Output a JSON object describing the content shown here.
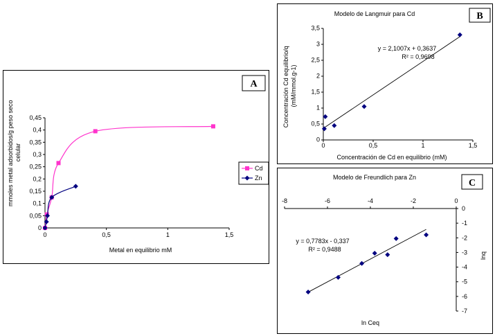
{
  "chart_data": [
    {
      "panel": "A",
      "type": "line",
      "title": "",
      "xlabel": "Metal en equilibrio mM",
      "ylabel": "mmoles metal adsorbidos/g peso seco celular",
      "xlim": [
        0,
        1.5
      ],
      "ylim": [
        0,
        0.45
      ],
      "xticks": [
        "0",
        "0,5",
        "1",
        "1,5"
      ],
      "yticks": [
        "0",
        "0,05",
        "0,1",
        "0,15",
        "0,2",
        "0,25",
        "0,3",
        "0,35",
        "0,4",
        "0,45"
      ],
      "legend": "right",
      "series": [
        {
          "name": "Cd",
          "color": "#ff33cc",
          "marker": "square",
          "x": [
            0,
            0.015,
            0.055,
            0.11,
            0.41,
            1.37
          ],
          "y": [
            0,
            0.055,
            0.125,
            0.265,
            0.395,
            0.415
          ]
        },
        {
          "name": "Zn",
          "color": "#000080",
          "marker": "diamond",
          "x": [
            0,
            0.012,
            0.02,
            0.055,
            0.25
          ],
          "y": [
            0,
            0.025,
            0.05,
            0.125,
            0.17
          ]
        }
      ]
    },
    {
      "panel": "B",
      "type": "scatter",
      "title": "Modelo de Langmuir para Cd",
      "xlabel": "Concentración de Cd en equilibrio (mM)",
      "ylabel": "Concentración Cd equilibrio/q (mM/mmol.g-1)",
      "xlim": [
        0,
        1.5
      ],
      "ylim": [
        0,
        3.5
      ],
      "xticks": [
        "0",
        "0,5",
        "1",
        "1,5"
      ],
      "yticks": [
        "0",
        "0,5",
        "1",
        "1,5",
        "2",
        "2,5",
        "3",
        "3,5"
      ],
      "equation": "y = 2,1007x + 0,3637",
      "r2": "R² = 0,9698",
      "trendline": {
        "slope": 2.1007,
        "intercept": 0.3637,
        "x_range": [
          0.01,
          1.38
        ]
      },
      "points": {
        "x": [
          0.01,
          0.02,
          0.11,
          0.41,
          1.37
        ],
        "y": [
          0.35,
          0.73,
          0.45,
          1.05,
          3.3
        ]
      }
    },
    {
      "panel": "C",
      "type": "scatter",
      "title": "Modelo de Freundlich para Zn",
      "xlabel": "ln Ceq",
      "ylabel": "lnq",
      "xlim": [
        -8,
        0
      ],
      "ylim": [
        -7,
        0
      ],
      "xticks": [
        "-8",
        "-6",
        "-4",
        "-2",
        "0"
      ],
      "yticks": [
        "0",
        "-1",
        "-2",
        "-3",
        "-4",
        "-5",
        "-6",
        "-7"
      ],
      "equation": "y = 0,7783x - 0,337",
      "r2": "R² = 0,9488",
      "trendline": {
        "slope": 0.7783,
        "intercept": -0.337,
        "x_range": [
          -6.9,
          -1.4
        ]
      },
      "points": {
        "x": [
          -6.9,
          -5.5,
          -4.4,
          -3.8,
          -3.2,
          -2.8,
          -1.4
        ],
        "y": [
          -5.7,
          -4.7,
          -3.75,
          -3.05,
          -3.15,
          -2.05,
          -1.8
        ]
      }
    }
  ],
  "tags": {
    "a": "A",
    "b": "B",
    "c": "C"
  }
}
